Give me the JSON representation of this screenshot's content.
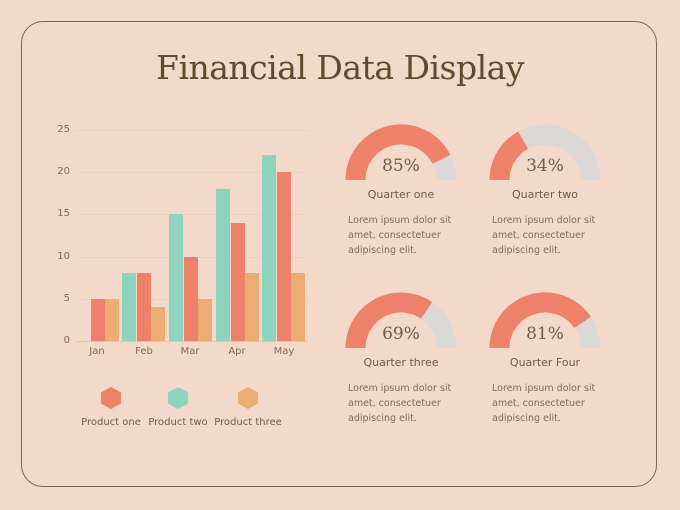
{
  "title": "Financial Data Display",
  "colors": {
    "background": "#f3d9c9",
    "product_one": "#ee816a",
    "product_two": "#8dd3bd",
    "product_three": "#ebad74",
    "gauge_fill": "#ee816a",
    "gauge_track": "#dcd8d6",
    "title": "#5e4a2c"
  },
  "chart_data": [
    {
      "type": "bar",
      "title": "",
      "xlabel": "",
      "ylabel": "",
      "categories": [
        "Jan",
        "Feb",
        "Mar",
        "Apr",
        "May"
      ],
      "series": [
        {
          "name": "Product two",
          "color": "#8dd3bd",
          "values": [
            0,
            8,
            15,
            18,
            22
          ]
        },
        {
          "name": "Product one",
          "color": "#ee816a",
          "values": [
            5,
            8,
            10,
            14,
            20
          ]
        },
        {
          "name": "Product three",
          "color": "#ebad74",
          "values": [
            5,
            4,
            5,
            8,
            8
          ]
        }
      ],
      "yticks": [
        0,
        5,
        10,
        15,
        20,
        25
      ],
      "ylim": [
        0,
        25
      ],
      "grid": true,
      "legend": {
        "position": "bottom",
        "entries": [
          "Product one",
          "Product two",
          "Product three"
        ]
      }
    },
    {
      "type": "gauge",
      "items": [
        {
          "label": "Quarter one",
          "value": 85
        },
        {
          "label": "Quarter two",
          "value": 34
        },
        {
          "label": "Quarter three",
          "value": 69
        },
        {
          "label": "Quarter Four",
          "value": 81
        }
      ]
    }
  ],
  "axis": {
    "yticks": [
      "25",
      "20",
      "15",
      "10",
      "5",
      "0"
    ],
    "xticks": [
      "Jan",
      "Feb",
      "Mar",
      "Apr",
      "May"
    ]
  },
  "legend": [
    {
      "label": "Product one",
      "icon": "hexagon-icon"
    },
    {
      "label": "Product two",
      "icon": "hexagon-icon"
    },
    {
      "label": "Product three",
      "icon": "hexagon-icon"
    }
  ],
  "gauges": [
    {
      "percent_text": "85%",
      "label": "Quarter one",
      "description": "Lorem ipsum dolor sit amet, consectetuer adipiscing elit."
    },
    {
      "percent_text": "34%",
      "label": "Quarter two",
      "description": "Lorem ipsum dolor sit amet, consectetuer adipiscing elit."
    },
    {
      "percent_text": "69%",
      "label": "Quarter three",
      "description": "Lorem ipsum dolor sit amet, consectetuer adipiscing elit."
    },
    {
      "percent_text": "81%",
      "label": "Quarter Four",
      "description": "Lorem ipsum dolor sit amet, consectetuer adipiscing elit."
    }
  ]
}
